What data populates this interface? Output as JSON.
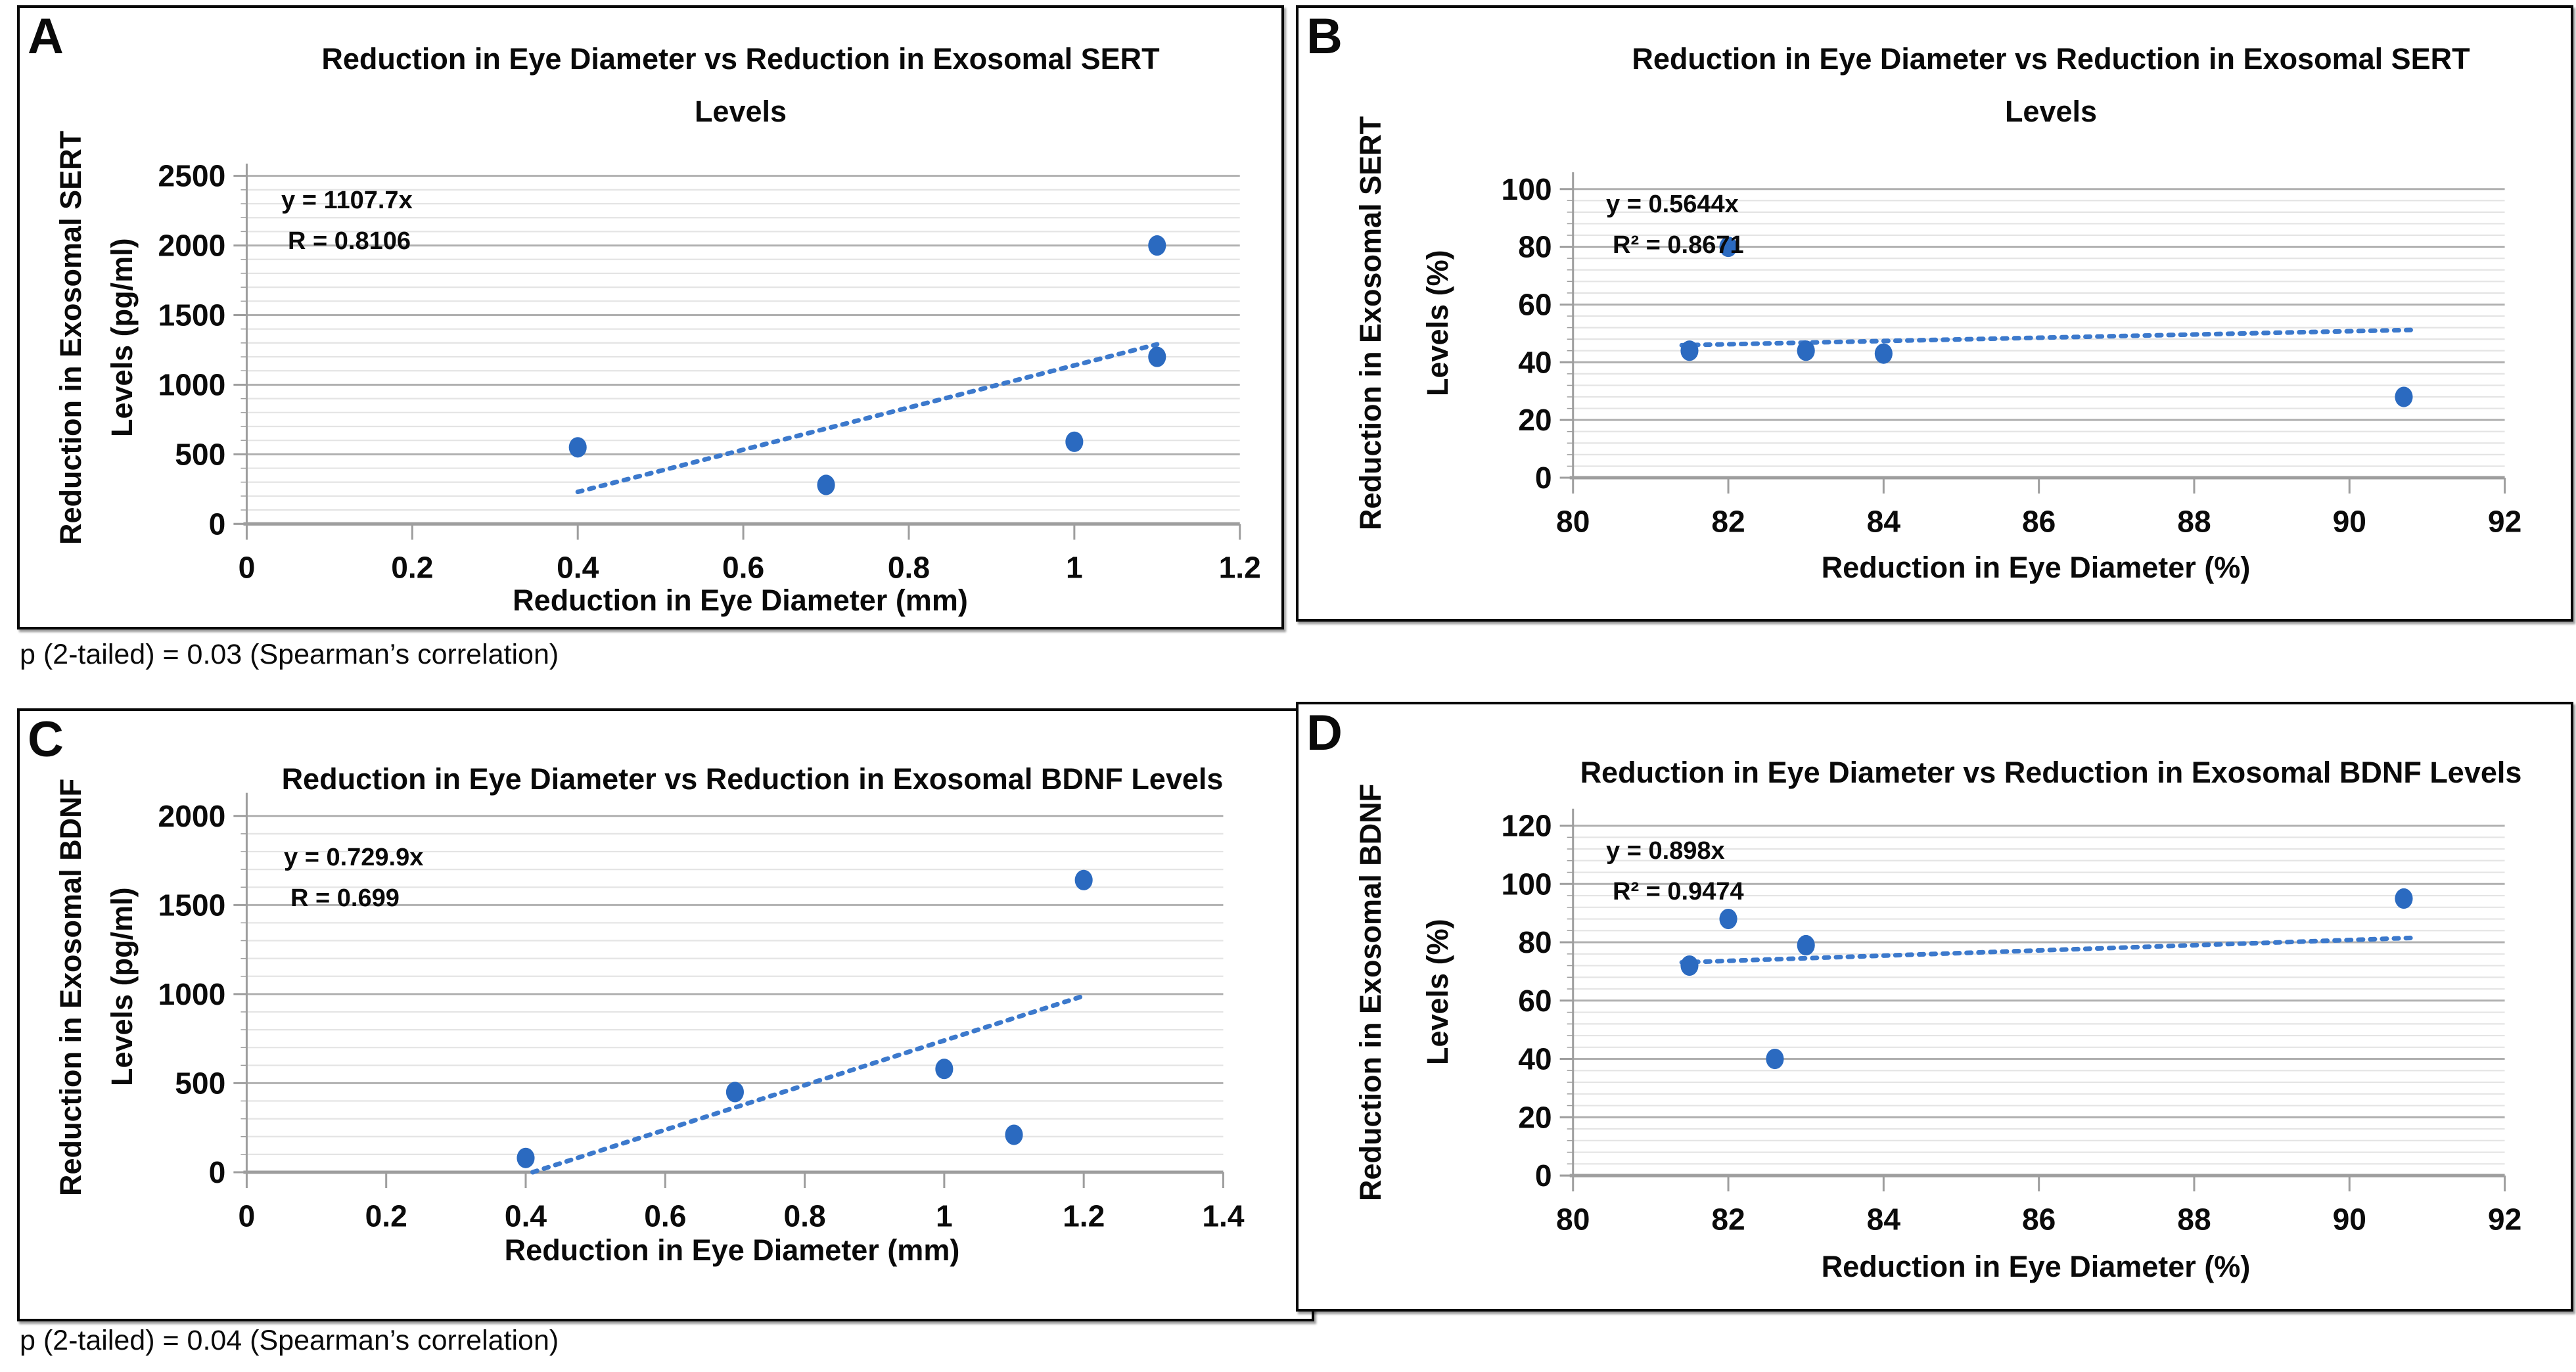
{
  "figure": {
    "panels": [
      {
        "letter": "A"
      },
      {
        "letter": "B"
      },
      {
        "letter": "C"
      },
      {
        "letter": "D"
      }
    ],
    "notes": [
      "p (2-tailed) = 0.03 (Spearman’s correlation)",
      "p (2-tailed) = 0.04 (Spearman’s correlation)"
    ]
  },
  "colors": {
    "marker": "#2B6AC0",
    "trendline": "#3C79CC",
    "grid_major": "#B0B0B0",
    "grid_minor": "#E4E4E4",
    "axis": "#9E9E9E",
    "text": "#0A0A0A"
  },
  "chart_data": [
    {
      "type": "scatter",
      "panel": "A",
      "title": "Reduction in Eye Diameter vs Reduction in Exosomal SERT Levels",
      "title_lines": [
        "Reduction in Eye Diameter vs Reduction in Exosomal SERT",
        "Levels"
      ],
      "xlabel": "Reduction in Eye Diameter (mm)",
      "ylabel": "Reduction in Exosomal SERT Levels (pg/ml)",
      "ylabel_lines": [
        "Reduction in Exosomal SERT",
        "Levels (pg/ml)"
      ],
      "equation_lines": [
        "y = 1107.7x",
        "R = 0.8106"
      ],
      "points": [
        [
          0.4,
          550
        ],
        [
          0.7,
          280
        ],
        [
          1.0,
          590
        ],
        [
          1.1,
          1200
        ],
        [
          1.1,
          2000
        ]
      ],
      "trendline": {
        "x1": 0.4,
        "y1": 230,
        "x2": 1.1,
        "y2": 1290,
        "style": "dotted"
      },
      "xlim": [
        0,
        1.2
      ],
      "ylim": [
        0,
        2500
      ],
      "xtick_values": [
        0,
        0.2,
        0.4,
        0.6,
        0.8,
        1,
        1.2
      ],
      "xtick_labels": [
        "0",
        "0.2",
        "0.4",
        "0.6",
        "0.8",
        "1",
        "1.2"
      ],
      "ytick_values": [
        0,
        500,
        1000,
        1500,
        2000,
        2500
      ],
      "ytick_labels": [
        "0",
        "500",
        "1000",
        "1500",
        "2000",
        "2500"
      ],
      "y_minor_step": 100,
      "grid": "horizontal-only",
      "legend": "none"
    },
    {
      "type": "scatter",
      "panel": "B",
      "title": "Reduction in Eye Diameter vs Reduction in Exosomal SERT Levels",
      "title_lines": [
        "Reduction in Eye Diameter vs Reduction in Exosomal SERT",
        "Levels"
      ],
      "xlabel": "Reduction in Eye Diameter (%)",
      "ylabel": "Reduction in Exosomal SERT Levels (%)",
      "ylabel_lines": [
        "Reduction in Exosomal SERT",
        "Levels (%)"
      ],
      "equation_lines": [
        "y = 0.5644x",
        "R² = 0.8671"
      ],
      "points": [
        [
          81.5,
          44
        ],
        [
          82,
          80
        ],
        [
          83,
          44
        ],
        [
          84,
          43
        ],
        [
          90.7,
          28
        ]
      ],
      "trendline": {
        "x1": 81.4,
        "y1": 45.9,
        "x2": 90.8,
        "y2": 51.2,
        "style": "dotted"
      },
      "xlim": [
        80,
        92
      ],
      "ylim": [
        0,
        100
      ],
      "xtick_values": [
        80,
        82,
        84,
        86,
        88,
        90,
        92
      ],
      "xtick_labels": [
        "80",
        "82",
        "84",
        "86",
        "88",
        "90",
        "92"
      ],
      "ytick_values": [
        0,
        20,
        40,
        60,
        80,
        100
      ],
      "ytick_labels": [
        "0",
        "20",
        "40",
        "60",
        "80",
        "100"
      ],
      "y_minor_step": 4,
      "grid": "horizontal-only",
      "legend": "none"
    },
    {
      "type": "scatter",
      "panel": "C",
      "title": "Reduction in Eye Diameter vs Reduction in Exosomal BDNF Levels",
      "title_lines": [
        "Reduction in Eye Diameter vs Reduction in Exosomal BDNF Levels",
        ""
      ],
      "xlabel": "Reduction in Eye Diameter (mm)",
      "ylabel": "Reduction in Exosomal BDNF Levels (pg/ml)",
      "ylabel_lines": [
        "Reduction in Exosomal BDNF",
        "Levels (pg/ml)"
      ],
      "equation_lines": [
        "y = 0.729.9x",
        "R = 0.699"
      ],
      "points": [
        [
          0.4,
          80
        ],
        [
          0.7,
          450
        ],
        [
          1.0,
          580
        ],
        [
          1.1,
          210
        ],
        [
          1.2,
          1640
        ]
      ],
      "trendline": {
        "x1": 0.41,
        "y1": 0,
        "x2": 1.2,
        "y2": 990,
        "style": "dotted"
      },
      "xlim": [
        0,
        1.4
      ],
      "ylim": [
        0,
        2000
      ],
      "xtick_values": [
        0,
        0.2,
        0.4,
        0.6,
        0.8,
        1,
        1.2,
        1.4
      ],
      "xtick_labels": [
        "0",
        "0.2",
        "0.4",
        "0.6",
        "0.8",
        "1",
        "1.2",
        "1.4"
      ],
      "ytick_values": [
        0,
        500,
        1000,
        1500,
        2000
      ],
      "ytick_labels": [
        "0",
        "500",
        "1000",
        "1500",
        "2000"
      ],
      "y_minor_step": 100,
      "grid": "horizontal-only",
      "legend": "none"
    },
    {
      "type": "scatter",
      "panel": "D",
      "title": "Reduction in Eye Diameter vs Reduction in Exosomal BDNF Levels",
      "title_lines": [
        "Reduction in Eye Diameter vs Reduction in Exosomal BDNF Levels",
        ""
      ],
      "xlabel": "Reduction in Eye Diameter (%)",
      "ylabel": "Reduction in Exosomal BDNF Levels (%)",
      "ylabel_lines": [
        "Reduction in Exosomal BDNF",
        "Levels (%)"
      ],
      "equation_lines": [
        "y = 0.898x",
        "R² = 0.9474"
      ],
      "points": [
        [
          81.5,
          72
        ],
        [
          82,
          88
        ],
        [
          82.6,
          40
        ],
        [
          83,
          79
        ],
        [
          90.7,
          95
        ]
      ],
      "trendline": {
        "x1": 81.4,
        "y1": 73.1,
        "x2": 90.8,
        "y2": 81.5,
        "style": "dotted"
      },
      "xlim": [
        80,
        92
      ],
      "ylim": [
        0,
        120
      ],
      "xtick_values": [
        80,
        82,
        84,
        86,
        88,
        90,
        92
      ],
      "xtick_labels": [
        "80",
        "82",
        "84",
        "86",
        "88",
        "90",
        "92"
      ],
      "ytick_values": [
        0,
        20,
        40,
        60,
        80,
        100,
        120
      ],
      "ytick_labels": [
        "0",
        "20",
        "40",
        "60",
        "80",
        "100",
        "120"
      ],
      "y_minor_step": 4,
      "grid": "horizontal-only",
      "legend": "none"
    }
  ]
}
